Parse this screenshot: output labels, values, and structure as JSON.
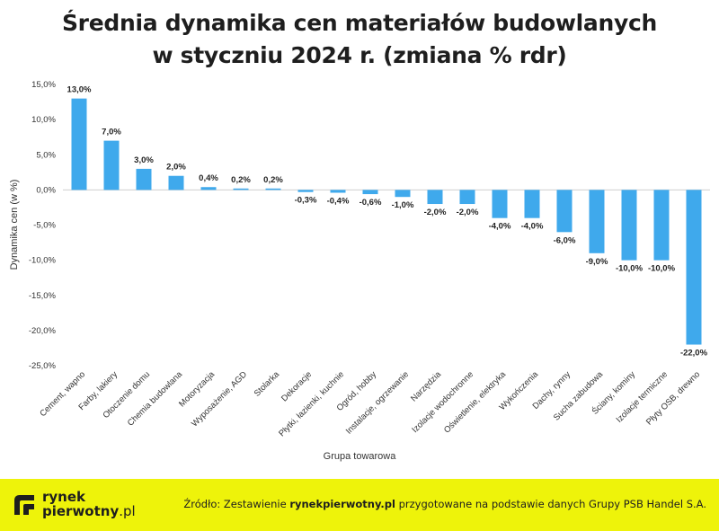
{
  "title_line1": "Średnia dynamika cen materiałów budowlanych",
  "title_line2": "w styczniu 2024 r. (zmiana % rdr)",
  "chart_data": {
    "type": "bar",
    "xlabel": "Grupa towarowa",
    "ylabel": "Dynamika cen (w %)",
    "ylim": [
      -25,
      15
    ],
    "yticks": [
      15,
      10,
      5,
      0,
      -5,
      -10,
      -15,
      -20,
      -25
    ],
    "ytick_labels": [
      "15,0%",
      "10,0%",
      "5,0%",
      "0,0%",
      "-5,0%",
      "-10,0%",
      "-15,0%",
      "-20,0%",
      "-25,0%"
    ],
    "grid": false,
    "legend": "none",
    "bar_color": "#3fa9ec",
    "categories": [
      "Cement, wapno",
      "Farby, lakiery",
      "Otoczenie domu",
      "Chemia budowlana",
      "Motoryzacja",
      "Wyposażenie, AGD",
      "Stolarka",
      "Dekoracje",
      "Płytki, łazienki, kuchnie",
      "Ogród, hobby",
      "Instalacje, ogrzewanie",
      "Narzędzia",
      "Izolacje wodochronne",
      "Oświetlenie, elektryka",
      "Wykończenia",
      "Dachy, rynny",
      "Sucha zabudowa",
      "Ściany, kominy",
      "Izolacje termiczne",
      "Płyty OSB, drewno"
    ],
    "values": [
      13.0,
      7.0,
      3.0,
      2.0,
      0.4,
      0.2,
      0.2,
      -0.3,
      -0.4,
      -0.6,
      -1.0,
      -2.0,
      -2.0,
      -4.0,
      -4.0,
      -6.0,
      -9.0,
      -10.0,
      -10.0,
      -22.0
    ],
    "value_labels": [
      "13,0%",
      "7,0%",
      "3,0%",
      "2,0%",
      "0,4%",
      "0,2%",
      "0,2%",
      "-0,3%",
      "-0,4%",
      "-0,6%",
      "-1,0%",
      "-2,0%",
      "-2,0%",
      "-4,0%",
      "-4,0%",
      "-6,0%",
      "-9,0%",
      "-10,0%",
      "-10,0%",
      "-22,0%"
    ]
  },
  "footer": {
    "background": "#eef30a",
    "logo_line1": "rynek",
    "logo_line2": "pierwotny",
    "logo_suffix": ".pl",
    "logo_icon": "rynekpierwotny-logo-icon",
    "source_prefix": "Źródło: Zestawienie ",
    "source_brand": "rynekpierwotny.pl",
    "source_suffix": " przygotowane na podstawie danych Grupy PSB Handel S.A."
  }
}
